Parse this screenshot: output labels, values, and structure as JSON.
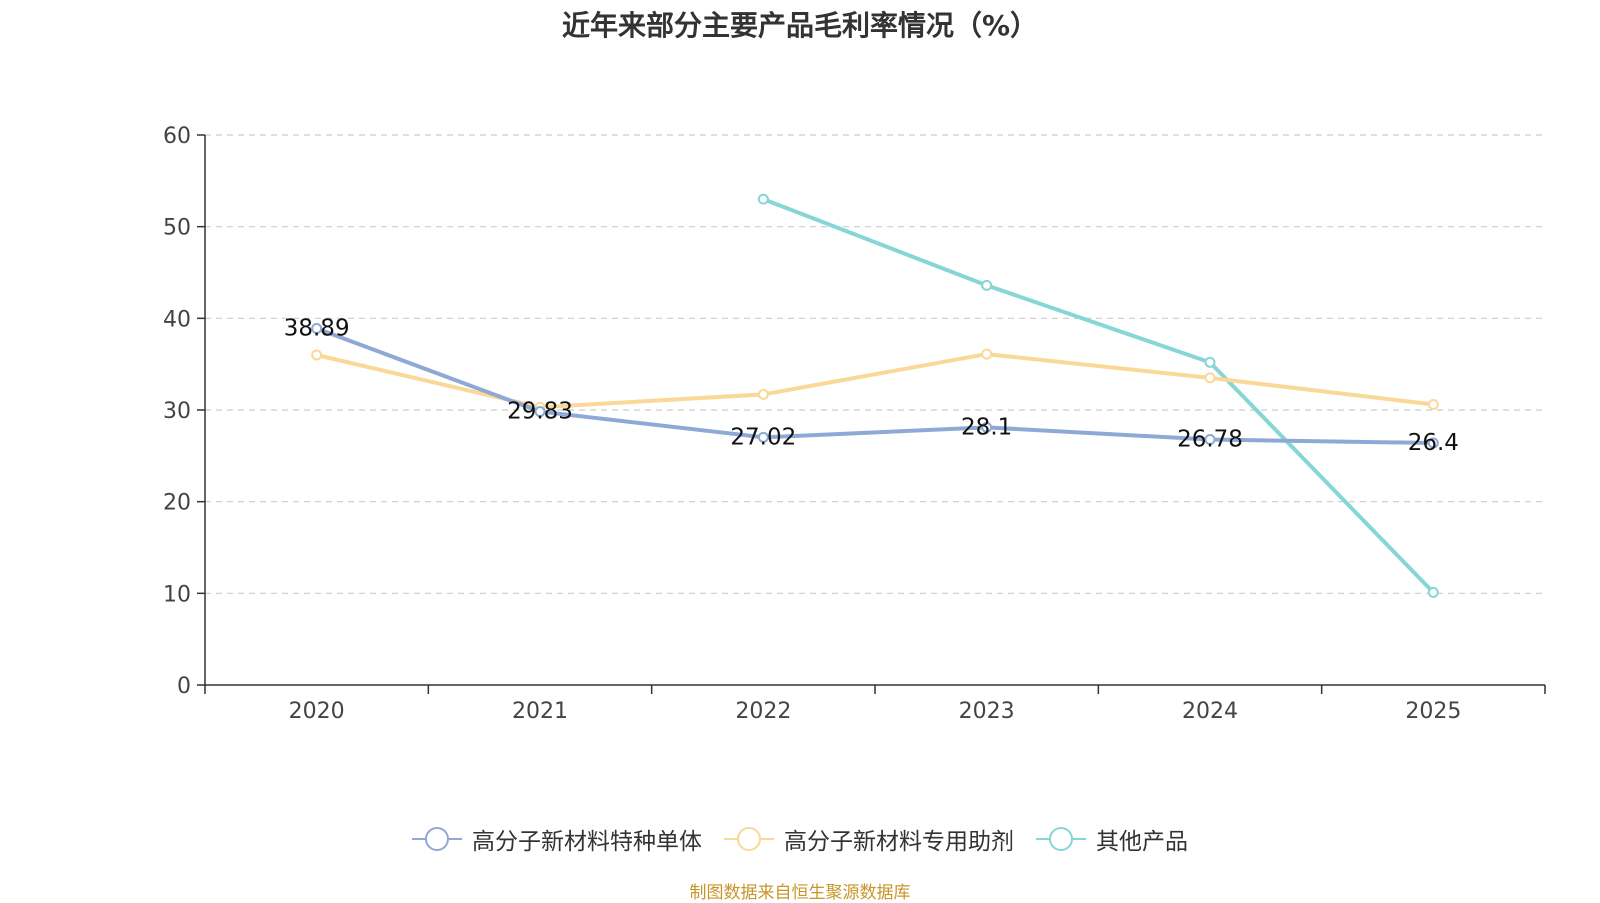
{
  "chart_data": {
    "type": "line",
    "title": "近年来部分主要产品毛利率情况（%）",
    "categories": [
      "2020",
      "2021",
      "2022",
      "2023",
      "2024",
      "2025"
    ],
    "ylim": [
      0,
      60
    ],
    "yticks": [
      0,
      10,
      20,
      30,
      40,
      50,
      60
    ],
    "grid": true,
    "legend_position": "bottom",
    "series": [
      {
        "name": "高分子新材料特种单体",
        "color": "#8fa9d6",
        "values": [
          38.89,
          29.83,
          27.02,
          28.1,
          26.78,
          26.4
        ],
        "labels": [
          "38.89",
          "29.83",
          "27.02",
          "28.1",
          "26.78",
          "26.4"
        ]
      },
      {
        "name": "高分子新材料专用助剂",
        "color": "#fad898",
        "values": [
          36.0,
          30.3,
          31.7,
          36.1,
          33.5,
          30.6
        ]
      },
      {
        "name": "其他产品",
        "color": "#86d6d6",
        "values": [
          null,
          null,
          53.0,
          43.6,
          35.2,
          10.1
        ]
      }
    ],
    "source": "制图数据来自恒生聚源数据库"
  }
}
